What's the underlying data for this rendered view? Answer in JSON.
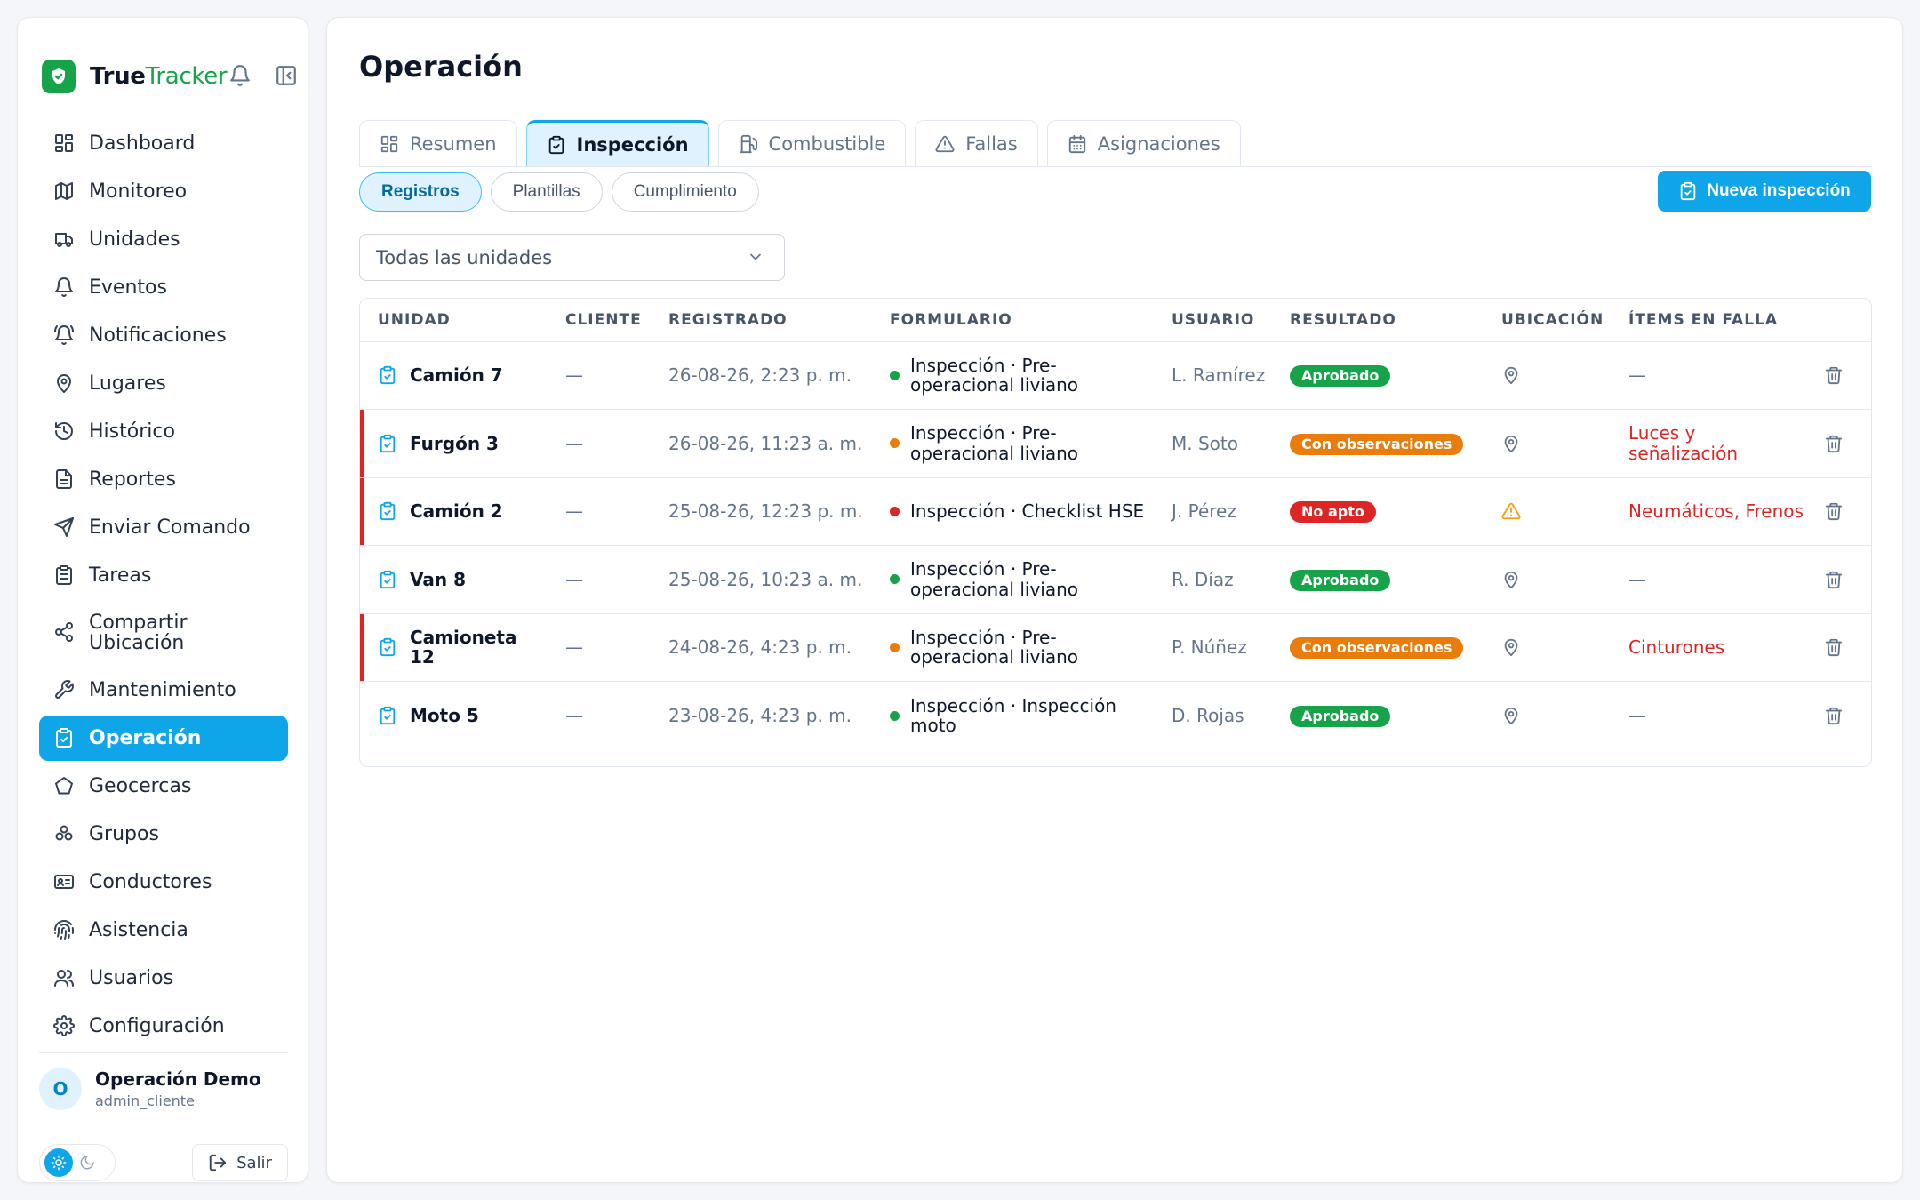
{
  "brand": {
    "name_bold": "True",
    "name_light": "Tracker"
  },
  "sidebar": {
    "items": [
      {
        "label": "Dashboard",
        "icon": "dashboard-icon"
      },
      {
        "label": "Monitoreo",
        "icon": "map-icon"
      },
      {
        "label": "Unidades",
        "icon": "truck-icon"
      },
      {
        "label": "Eventos",
        "icon": "bell-icon"
      },
      {
        "label": "Notificaciones",
        "icon": "bell-ring-icon"
      },
      {
        "label": "Lugares",
        "icon": "pin-icon"
      },
      {
        "label": "Histórico",
        "icon": "history-icon"
      },
      {
        "label": "Reportes",
        "icon": "report-icon"
      },
      {
        "label": "Enviar Comando",
        "icon": "send-icon"
      },
      {
        "label": "Tareas",
        "icon": "clipboard-icon"
      },
      {
        "label": "Compartir Ubicación",
        "icon": "share-icon"
      },
      {
        "label": "Mantenimiento",
        "icon": "wrench-icon"
      },
      {
        "label": "Operación",
        "icon": "clipboard-check-icon"
      },
      {
        "label": "Geocercas",
        "icon": "pentagon-icon"
      },
      {
        "label": "Grupos",
        "icon": "groups-icon"
      },
      {
        "label": "Conductores",
        "icon": "id-card-icon"
      },
      {
        "label": "Asistencia",
        "icon": "fingerprint-icon"
      },
      {
        "label": "Usuarios",
        "icon": "users-icon"
      },
      {
        "label": "Configuración",
        "icon": "gear-icon"
      }
    ],
    "active": "Operación"
  },
  "user": {
    "initial": "O",
    "name": "Operación Demo",
    "role": "admin_cliente",
    "logout_label": "Salir"
  },
  "page": {
    "title": "Operación"
  },
  "tabs": [
    {
      "label": "Resumen"
    },
    {
      "label": "Inspección"
    },
    {
      "label": "Combustible"
    },
    {
      "label": "Fallas"
    },
    {
      "label": "Asignaciones"
    }
  ],
  "subtabs": [
    {
      "label": "Registros"
    },
    {
      "label": "Plantillas"
    },
    {
      "label": "Cumplimiento"
    }
  ],
  "new_button": {
    "label": "Nueva inspección"
  },
  "filter": {
    "value": "Todas las unidades"
  },
  "table": {
    "headers": [
      "UNIDAD",
      "CLIENTE",
      "REGISTRADO",
      "FORMULARIO",
      "USUARIO",
      "RESULTADO",
      "UBICACIÓN",
      "ÍTEMS EN FALLA"
    ],
    "rows": [
      {
        "unit": "Camión 7",
        "client": "—",
        "date": "26-08-26, 2:23 p. m.",
        "form": "Inspección · Pre-operacional liviano",
        "user": "L. Ramírez",
        "result": "Aprobado",
        "failed": "—"
      },
      {
        "unit": "Furgón 3",
        "client": "—",
        "date": "26-08-26, 11:23 a. m.",
        "form": "Inspección · Pre-operacional liviano",
        "user": "M. Soto",
        "result": "Con observaciones",
        "failed": "Luces y señalización"
      },
      {
        "unit": "Camión 2",
        "client": "—",
        "date": "25-08-26, 12:23 p. m.",
        "form": "Inspección · Checklist HSE",
        "user": "J. Pérez",
        "result": "No apto",
        "failed": "Neumáticos, Frenos"
      },
      {
        "unit": "Van 8",
        "client": "—",
        "date": "25-08-26, 10:23 a. m.",
        "form": "Inspección · Pre-operacional liviano",
        "user": "R. Díaz",
        "result": "Aprobado",
        "failed": "—"
      },
      {
        "unit": "Camioneta 12",
        "client": "—",
        "date": "24-08-26, 4:23 p. m.",
        "form": "Inspección · Pre-operacional liviano",
        "user": "P. Núñez",
        "result": "Con observaciones",
        "failed": "Cinturones"
      },
      {
        "unit": "Moto 5",
        "client": "—",
        "date": "23-08-26, 4:23 p. m.",
        "form": "Inspección · Inspección moto",
        "user": "D. Rojas",
        "result": "Aprobado",
        "failed": "—"
      }
    ]
  },
  "colors": {
    "accent": "#0ea5e9",
    "brand": "#16a34a",
    "approved": "#16a34a",
    "observations": "#ea7c0c",
    "not_fit": "#dc2626"
  }
}
